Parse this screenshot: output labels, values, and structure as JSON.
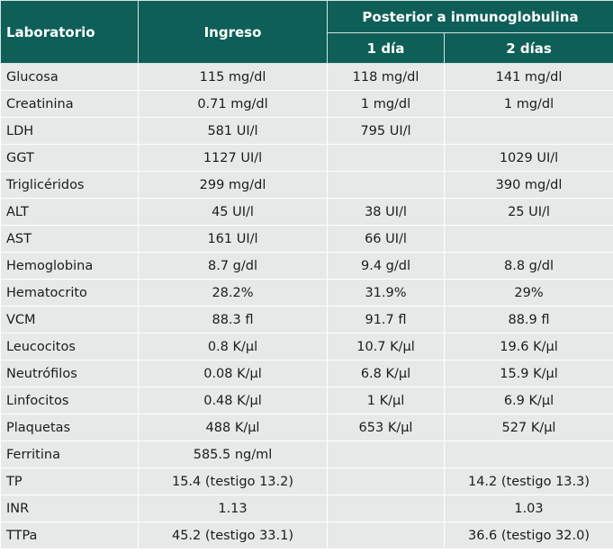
{
  "table": {
    "header": {
      "laboratorio": "Laboratorio",
      "ingreso": "Ingreso",
      "posterior": "Posterior a inmunoglobulina",
      "dia1": "1 día",
      "dia2": "2 días"
    },
    "rows": [
      {
        "name": "Glucosa",
        "ingreso": "115 mg/dl",
        "dia1": "118 mg/dl",
        "dia2": "141 mg/dl"
      },
      {
        "name": "Creatinina",
        "ingreso": "0.71 mg/dl",
        "dia1": "1 mg/dl",
        "dia2": "1 mg/dl"
      },
      {
        "name": "LDH",
        "ingreso": "581 UI/l",
        "dia1": "795 UI/l",
        "dia2": ""
      },
      {
        "name": "GGT",
        "ingreso": "1127 UI/l",
        "dia1": "",
        "dia2": "1029 UI/l"
      },
      {
        "name": "Triglicéridos",
        "ingreso": "299 mg/dl",
        "dia1": "",
        "dia2": "390 mg/dl"
      },
      {
        "name": "ALT",
        "ingreso": "45 UI/l",
        "dia1": "38 UI/l",
        "dia2": "25 UI/l"
      },
      {
        "name": "AST",
        "ingreso": "161 UI/l",
        "dia1": "66 UI/l",
        "dia2": ""
      },
      {
        "name": "Hemoglobina",
        "ingreso": "8.7 g/dl",
        "dia1": "9.4 g/dl",
        "dia2": "8.8 g/dl"
      },
      {
        "name": "Hematocrito",
        "ingreso": "28.2%",
        "dia1": "31.9%",
        "dia2": "29%"
      },
      {
        "name": "VCM",
        "ingreso": "88.3 fl",
        "dia1": "91.7 fl",
        "dia2": "88.9 fl"
      },
      {
        "name": "Leucocitos",
        "ingreso": "0.8 K/µl",
        "dia1": "10.7 K/µl",
        "dia2": "19.6 K/µl"
      },
      {
        "name": "Neutrófilos",
        "ingreso": "0.08 K/µl",
        "dia1": "6.8 K/µl",
        "dia2": "15.9 K/µl"
      },
      {
        "name": "Linfocitos",
        "ingreso": "0.48 K/µl",
        "dia1": "1 K/µl",
        "dia2": "6.9 K/µl"
      },
      {
        "name": "Plaquetas",
        "ingreso": "488 K/µl",
        "dia1": "653 K/µl",
        "dia2": "527 K/µl"
      },
      {
        "name": "Ferritina",
        "ingreso": "585.5 ng/ml",
        "dia1": "",
        "dia2": ""
      },
      {
        "name": "TP",
        "ingreso": "15.4 (testigo 13.2)",
        "dia1": "",
        "dia2": "14.2 (testigo 13.3)"
      },
      {
        "name": "INR",
        "ingreso": "1.13",
        "dia1": "",
        "dia2": "1.03"
      },
      {
        "name": "TTPa",
        "ingreso": "45.2 (testigo 33.1)",
        "dia1": "",
        "dia2": "36.6 (testigo 32.0)"
      }
    ]
  },
  "colors": {
    "header_bg": "#0e5f58",
    "header_text": "#ffffff",
    "cell_bg": "#e7e9e9"
  }
}
